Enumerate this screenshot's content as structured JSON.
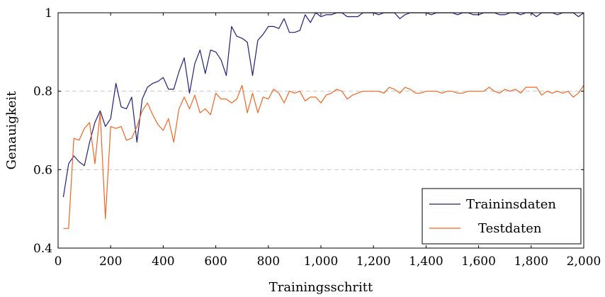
{
  "chart_data": {
    "type": "line",
    "xlabel": "Trainingsschritt",
    "ylabel": "Genauigkeit",
    "xlim": [
      0,
      2000
    ],
    "ylim": [
      0.4,
      1.0
    ],
    "xticks": [
      0,
      200,
      400,
      600,
      800,
      1000,
      1200,
      1400,
      1600,
      1800,
      2000
    ],
    "xtick_labels": [
      "0",
      "200",
      "400",
      "600",
      "800",
      "1,000",
      "1,200",
      "1,400",
      "1,600",
      "1,800",
      "2,000"
    ],
    "yticks": [
      0.4,
      0.6,
      0.8,
      1.0
    ],
    "ytick_labels": [
      "0.4",
      "0.6",
      "0.8",
      "1"
    ],
    "grid": "horizontal dashed",
    "legend_position": "bottom-right",
    "series": [
      {
        "name": "Traininsdaten",
        "color": "#1f1f7a",
        "x": [
          20,
          40,
          60,
          80,
          100,
          120,
          140,
          160,
          180,
          200,
          220,
          240,
          260,
          280,
          300,
          320,
          340,
          360,
          380,
          400,
          420,
          440,
          460,
          480,
          500,
          520,
          540,
          560,
          580,
          600,
          620,
          640,
          660,
          680,
          700,
          720,
          740,
          760,
          780,
          800,
          820,
          840,
          860,
          880,
          900,
          920,
          940,
          960,
          980,
          1000,
          1020,
          1040,
          1060,
          1080,
          1100,
          1120,
          1140,
          1160,
          1180,
          1200,
          1220,
          1240,
          1260,
          1280,
          1300,
          1320,
          1340,
          1360,
          1380,
          1400,
          1420,
          1440,
          1460,
          1480,
          1500,
          1520,
          1540,
          1560,
          1580,
          1600,
          1620,
          1640,
          1660,
          1680,
          1700,
          1720,
          1740,
          1760,
          1780,
          1800,
          1820,
          1840,
          1860,
          1880,
          1900,
          1920,
          1940,
          1960,
          1980,
          2000
        ],
        "y": [
          0.53,
          0.615,
          0.635,
          0.62,
          0.61,
          0.67,
          0.72,
          0.75,
          0.71,
          0.73,
          0.82,
          0.76,
          0.755,
          0.785,
          0.67,
          0.78,
          0.81,
          0.82,
          0.825,
          0.835,
          0.805,
          0.805,
          0.85,
          0.885,
          0.795,
          0.87,
          0.905,
          0.845,
          0.905,
          0.9,
          0.88,
          0.84,
          0.965,
          0.94,
          0.935,
          0.925,
          0.84,
          0.93,
          0.945,
          0.965,
          0.965,
          0.96,
          0.985,
          0.95,
          0.95,
          0.955,
          0.995,
          0.975,
          1.0,
          0.99,
          0.995,
          0.995,
          1.0,
          1.0,
          0.99,
          0.99,
          0.99,
          1.0,
          1.0,
          1.0,
          0.995,
          1.0,
          1.0,
          1.0,
          0.985,
          0.995,
          1.0,
          1.0,
          1.0,
          1.0,
          0.995,
          1.0,
          1.0,
          1.0,
          1.0,
          0.995,
          1.0,
          1.0,
          0.995,
          0.995,
          1.0,
          1.0,
          1.0,
          0.995,
          0.995,
          1.0,
          1.0,
          0.995,
          1.0,
          1.0,
          0.99,
          1.0,
          1.0,
          1.0,
          0.995,
          1.0,
          1.0,
          1.0,
          0.99,
          1.0
        ]
      },
      {
        "name": "Testdaten",
        "color": "#f26522",
        "x": [
          20,
          40,
          60,
          80,
          100,
          120,
          140,
          160,
          180,
          200,
          220,
          240,
          260,
          280,
          300,
          320,
          340,
          360,
          380,
          400,
          420,
          440,
          460,
          480,
          500,
          520,
          540,
          560,
          580,
          600,
          620,
          640,
          660,
          680,
          700,
          720,
          740,
          760,
          780,
          800,
          820,
          840,
          860,
          880,
          900,
          920,
          940,
          960,
          980,
          1000,
          1020,
          1040,
          1060,
          1080,
          1100,
          1120,
          1140,
          1160,
          1180,
          1200,
          1220,
          1240,
          1260,
          1280,
          1300,
          1320,
          1340,
          1360,
          1380,
          1400,
          1420,
          1440,
          1460,
          1480,
          1500,
          1520,
          1540,
          1560,
          1580,
          1600,
          1620,
          1640,
          1660,
          1680,
          1700,
          1720,
          1740,
          1760,
          1780,
          1800,
          1820,
          1840,
          1860,
          1880,
          1900,
          1920,
          1940,
          1960,
          1980,
          2000
        ],
        "y": [
          0.45,
          0.45,
          0.68,
          0.675,
          0.705,
          0.72,
          0.615,
          0.745,
          0.475,
          0.71,
          0.705,
          0.71,
          0.675,
          0.68,
          0.71,
          0.75,
          0.77,
          0.74,
          0.715,
          0.7,
          0.73,
          0.67,
          0.755,
          0.785,
          0.755,
          0.79,
          0.745,
          0.755,
          0.74,
          0.795,
          0.78,
          0.78,
          0.77,
          0.78,
          0.815,
          0.745,
          0.795,
          0.745,
          0.785,
          0.78,
          0.805,
          0.795,
          0.77,
          0.8,
          0.795,
          0.8,
          0.775,
          0.785,
          0.785,
          0.77,
          0.79,
          0.795,
          0.805,
          0.8,
          0.78,
          0.79,
          0.795,
          0.8,
          0.8,
          0.8,
          0.8,
          0.795,
          0.81,
          0.805,
          0.795,
          0.81,
          0.805,
          0.795,
          0.795,
          0.8,
          0.8,
          0.8,
          0.795,
          0.8,
          0.8,
          0.795,
          0.795,
          0.8,
          0.8,
          0.8,
          0.8,
          0.81,
          0.8,
          0.795,
          0.805,
          0.8,
          0.805,
          0.795,
          0.81,
          0.81,
          0.81,
          0.79,
          0.8,
          0.795,
          0.8,
          0.795,
          0.8,
          0.785,
          0.795,
          0.815
        ]
      }
    ]
  }
}
